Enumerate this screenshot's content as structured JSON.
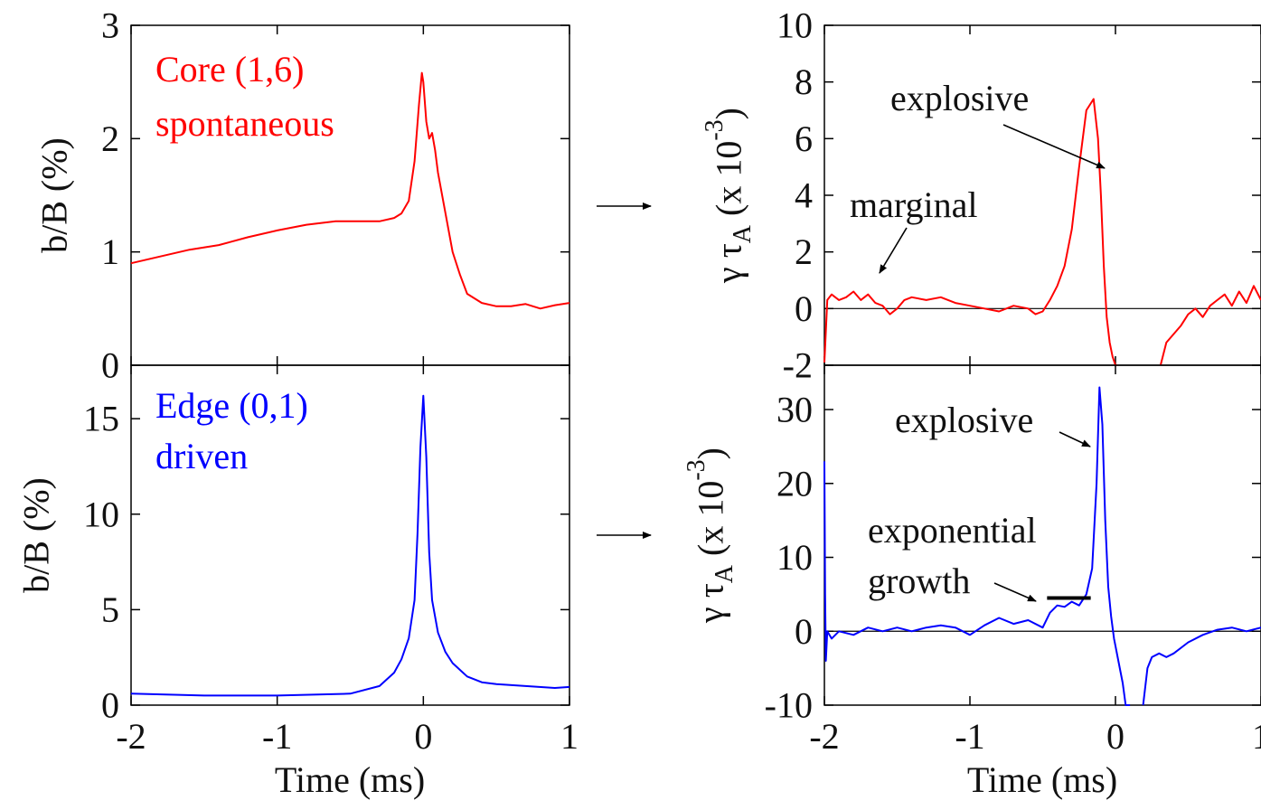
{
  "chart_data": [
    {
      "id": "core_b",
      "type": "line",
      "color": "#ff0000",
      "legend": [
        "Core (1,6)",
        "spontaneous"
      ],
      "ylabel": "b/B (%)",
      "xlabel": "",
      "xlim": [
        -2,
        1
      ],
      "ylim": [
        0,
        3
      ],
      "yticks": [
        "0",
        "1",
        "2",
        "3"
      ],
      "xticks": [],
      "annotations": [],
      "series": [
        {
          "x": [
            -2.0,
            -1.8,
            -1.6,
            -1.4,
            -1.2,
            -1.0,
            -0.8,
            -0.6,
            -0.4,
            -0.3,
            -0.2,
            -0.15,
            -0.1,
            -0.06,
            -0.03,
            -0.01,
            0.0,
            0.02,
            0.04,
            0.06,
            0.08,
            0.1,
            0.15,
            0.2,
            0.25,
            0.3,
            0.4,
            0.5,
            0.6,
            0.7,
            0.8,
            0.9,
            1.0
          ],
          "y": [
            0.9,
            0.96,
            1.02,
            1.06,
            1.13,
            1.19,
            1.24,
            1.27,
            1.27,
            1.27,
            1.3,
            1.34,
            1.45,
            1.8,
            2.3,
            2.58,
            2.5,
            2.15,
            2.0,
            2.05,
            1.9,
            1.7,
            1.35,
            1.0,
            0.8,
            0.63,
            0.55,
            0.52,
            0.52,
            0.54,
            0.5,
            0.53,
            0.55
          ]
        }
      ]
    },
    {
      "id": "edge_b",
      "type": "line",
      "color": "#0000ff",
      "legend": [
        "Edge (0,1)",
        "driven"
      ],
      "ylabel": "b/B (%)",
      "xlabel": "Time (ms)",
      "xlim": [
        -2,
        1
      ],
      "ylim": [
        0,
        17.8
      ],
      "yticks": [
        "0",
        "5",
        "10",
        "15"
      ],
      "xticks": [
        "-2",
        "-1",
        "0",
        "1"
      ],
      "annotations": [],
      "series": [
        {
          "x": [
            -2.0,
            -1.5,
            -1.0,
            -0.5,
            -0.3,
            -0.2,
            -0.15,
            -0.1,
            -0.06,
            -0.04,
            -0.02,
            0.0,
            0.02,
            0.04,
            0.06,
            0.1,
            0.15,
            0.2,
            0.3,
            0.4,
            0.5,
            0.7,
            0.9,
            1.0
          ],
          "y": [
            0.6,
            0.5,
            0.5,
            0.6,
            1.0,
            1.7,
            2.4,
            3.5,
            5.5,
            9.0,
            13.5,
            16.2,
            13.0,
            8.0,
            5.5,
            3.8,
            2.8,
            2.2,
            1.5,
            1.2,
            1.1,
            1.0,
            0.9,
            0.95
          ]
        }
      ]
    },
    {
      "id": "core_gamma",
      "type": "line",
      "color": "#ff0000",
      "ylabel": "γ τ_A (x 10^-3)",
      "xlabel": "",
      "xlim": [
        -2,
        1
      ],
      "ylim": [
        -2,
        10
      ],
      "yticks": [
        "-2",
        "0",
        "2",
        "4",
        "6",
        "8",
        "10"
      ],
      "xticks": [],
      "zero_line": true,
      "annotations": [
        "explosive",
        "marginal"
      ],
      "series": [
        {
          "x": [
            -2.0,
            -1.98,
            -1.95,
            -1.9,
            -1.85,
            -1.8,
            -1.75,
            -1.7,
            -1.65,
            -1.6,
            -1.55,
            -1.5,
            -1.45,
            -1.4,
            -1.3,
            -1.2,
            -1.1,
            -1.0,
            -0.9,
            -0.8,
            -0.7,
            -0.6,
            -0.55,
            -0.5,
            -0.45,
            -0.4,
            -0.35,
            -0.3,
            -0.25,
            -0.2,
            -0.15,
            -0.12,
            -0.1,
            -0.08,
            -0.06,
            -0.04,
            -0.02,
            0.0,
            0.01
          ],
          "y": [
            -1.9,
            0.3,
            0.5,
            0.3,
            0.4,
            0.6,
            0.3,
            0.5,
            0.2,
            0.1,
            -0.2,
            0.0,
            0.3,
            0.4,
            0.3,
            0.4,
            0.2,
            0.1,
            0.0,
            -0.1,
            0.1,
            0.0,
            -0.2,
            -0.1,
            0.3,
            0.8,
            1.5,
            2.8,
            5.0,
            7.0,
            7.4,
            6.0,
            4.0,
            1.5,
            -0.3,
            -1.2,
            -1.7,
            -2.0,
            -2.0
          ]
        },
        {
          "x": [
            0.31,
            0.35,
            0.4,
            0.45,
            0.5,
            0.55,
            0.6,
            0.65,
            0.7,
            0.75,
            0.8,
            0.85,
            0.9,
            0.95,
            1.0
          ],
          "y": [
            -2.0,
            -1.2,
            -0.9,
            -0.6,
            -0.2,
            0.0,
            -0.3,
            0.1,
            0.3,
            0.5,
            0.1,
            0.6,
            0.2,
            0.8,
            0.3
          ]
        }
      ]
    },
    {
      "id": "edge_gamma",
      "type": "line",
      "color": "#0000ff",
      "ylabel": "γ τ_A (x 10^-3)",
      "xlabel": "Time (ms)",
      "xlim": [
        -2,
        1
      ],
      "ylim": [
        -10,
        36
      ],
      "yticks": [
        "-10",
        "0",
        "10",
        "20",
        "30"
      ],
      "xticks": [
        "-2",
        "-1",
        "0",
        "1"
      ],
      "zero_line": true,
      "annotations": [
        "explosive",
        "exponential",
        "growth"
      ],
      "series": [
        {
          "x": [
            -2.0,
            -1.995,
            -1.99,
            -1.98,
            -1.95,
            -1.9,
            -1.8,
            -1.7,
            -1.6,
            -1.5,
            -1.4,
            -1.3,
            -1.2,
            -1.1,
            -1.0,
            -0.9,
            -0.8,
            -0.7,
            -0.6,
            -0.5,
            -0.45,
            -0.4,
            -0.35,
            -0.3,
            -0.25,
            -0.2,
            -0.16,
            -0.13,
            -0.11,
            -0.09,
            -0.07,
            -0.05,
            -0.03,
            -0.01,
            0.0,
            0.02,
            0.05,
            0.07,
            0.09,
            0.1
          ],
          "y": [
            23,
            5,
            -4,
            0,
            -1,
            0,
            -0.5,
            0.5,
            0,
            0.5,
            0,
            0.5,
            0.8,
            0.5,
            -0.5,
            0.8,
            1.8,
            1.0,
            1.5,
            0.5,
            2.5,
            3.5,
            3.3,
            4.0,
            3.5,
            5.0,
            8.5,
            20,
            33,
            28,
            15,
            6,
            2,
            -1,
            -2,
            -4,
            -7,
            -10,
            -10,
            -10
          ]
        },
        {
          "x": [
            0.19,
            0.22,
            0.25,
            0.3,
            0.35,
            0.4,
            0.5,
            0.6,
            0.7,
            0.8,
            0.9,
            1.0
          ],
          "y": [
            -10,
            -5,
            -3.5,
            -3,
            -3.5,
            -3,
            -1.5,
            -0.5,
            0.2,
            0.5,
            0.0,
            0.5
          ]
        }
      ],
      "flat_segment": {
        "x": [
          -0.47,
          -0.17
        ],
        "y": 4.5
      }
    }
  ]
}
